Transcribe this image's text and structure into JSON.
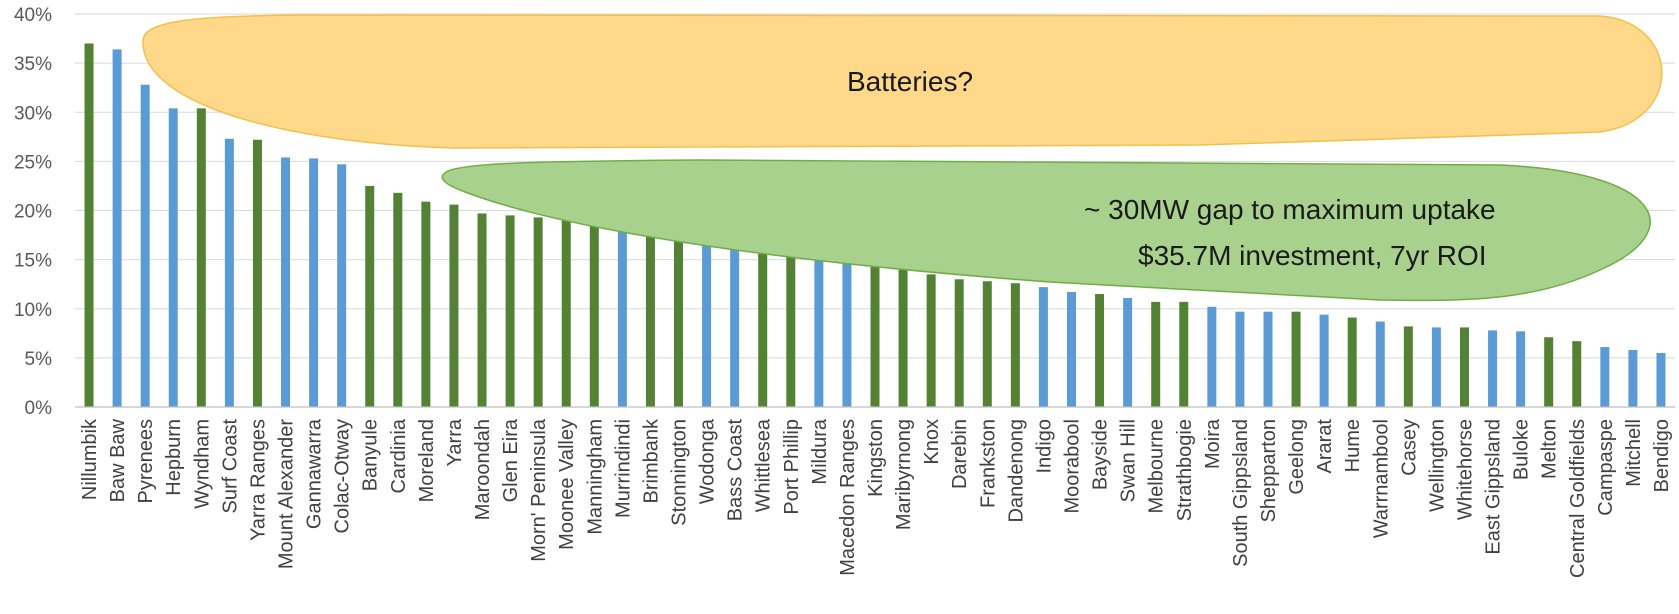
{
  "chart_data": {
    "type": "bar",
    "ylim": [
      0,
      0.4
    ],
    "yticks": [
      "0%",
      "5%",
      "10%",
      "15%",
      "20%",
      "25%",
      "30%",
      "35%",
      "40%"
    ],
    "grid": true,
    "colors": {
      "green": "#548235",
      "blue": "#5B9BD5",
      "grid": "#d9d9d9",
      "axis": "#bfbfbf"
    },
    "categories": [
      "Nillumbik",
      "Baw Baw",
      "Pyrenees",
      "Hepburn",
      "Wyndham",
      "Surf Coast",
      "Yarra Ranges",
      "Mount Alexander",
      "Gannawarra",
      "Colac-Otway",
      "Banyule",
      "Cardinia",
      "Moreland",
      "Yarra",
      "Maroondah",
      "Glen Eira",
      "Morn' Peninsula",
      "Moonee Valley",
      "Manningham",
      "Murrindindi",
      "Brimbank",
      "Stonnington",
      "Wodonga",
      "Bass Coast",
      "Whittlesea",
      "Port Phillip",
      "Mildura",
      "Macedon Ranges",
      "Kingston",
      "Maribyrnong",
      "Knox",
      "Darebin",
      "Frankston",
      "Dandenong",
      "Indigo",
      "Moorabool",
      "Bayside",
      "Swan Hill",
      "Melbourne",
      "Strathbogie",
      "Moira",
      "South Gippsland",
      "Shepparton",
      "Geelong",
      "Ararat",
      "Hume",
      "Warrnambool",
      "Casey",
      "Wellington",
      "Whitehorse",
      "East Gippsland",
      "Buloke",
      "Melton",
      "Central Goldfields",
      "Campaspe",
      "Mitchell",
      "Bendigo"
    ],
    "values": [
      0.37,
      0.364,
      0.328,
      0.304,
      0.304,
      0.273,
      0.272,
      0.254,
      0.253,
      0.247,
      0.225,
      0.218,
      0.209,
      0.206,
      0.197,
      0.195,
      0.193,
      0.192,
      0.188,
      0.184,
      0.184,
      0.183,
      0.18,
      0.178,
      0.178,
      0.176,
      0.162,
      0.157,
      0.153,
      0.145,
      0.135,
      0.13,
      0.128,
      0.126,
      0.122,
      0.117,
      0.115,
      0.111,
      0.107,
      0.107,
      0.102,
      0.097,
      0.097,
      0.097,
      0.094,
      0.091,
      0.087,
      0.082,
      0.081,
      0.081,
      0.078,
      0.077,
      0.071,
      0.067,
      0.061,
      0.058,
      0.055
    ],
    "bar_colors": [
      "green",
      "blue",
      "blue",
      "blue",
      "green",
      "blue",
      "green",
      "blue",
      "blue",
      "blue",
      "green",
      "green",
      "green",
      "green",
      "green",
      "green",
      "green",
      "green",
      "green",
      "blue",
      "green",
      "green",
      "blue",
      "blue",
      "green",
      "green",
      "blue",
      "blue",
      "green",
      "green",
      "green",
      "green",
      "green",
      "green",
      "blue",
      "blue",
      "green",
      "blue",
      "green",
      "green",
      "blue",
      "blue",
      "blue",
      "green",
      "blue",
      "green",
      "blue",
      "green",
      "blue",
      "green",
      "blue",
      "blue",
      "green",
      "green",
      "blue",
      "blue",
      "blue"
    ],
    "annotations": [
      {
        "text": "Batteries?",
        "fill": "#FFD88A",
        "stroke": "#F2C04A"
      },
      {
        "text_lines": [
          "~ 30MW gap to maximum uptake",
          "$35.7M investment, 7yr ROI"
        ],
        "fill": "#A9D18E",
        "stroke": "#70AD47"
      }
    ]
  }
}
